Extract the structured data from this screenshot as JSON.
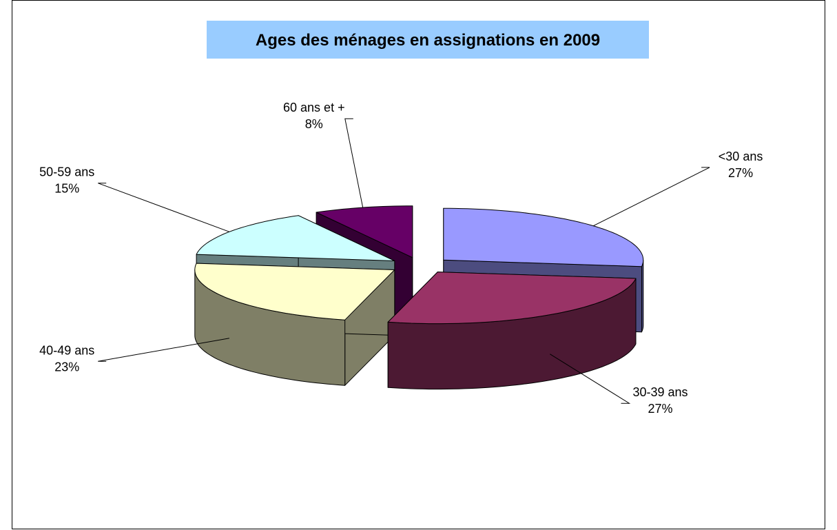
{
  "chart_data": {
    "type": "pie3d",
    "title": "Ages des ménages en assignations en 2009",
    "categories": [
      "<30 ans",
      "30-39 ans",
      "40-49 ans",
      "50-59 ans",
      "60 ans et +"
    ],
    "values": [
      27,
      27,
      23,
      15,
      8
    ],
    "value_labels": [
      "27%",
      "27%",
      "23%",
      "15%",
      "8%"
    ],
    "colors": [
      "#9999ff",
      "#993366",
      "#ffffcc",
      "#ccffff",
      "#660066"
    ]
  }
}
